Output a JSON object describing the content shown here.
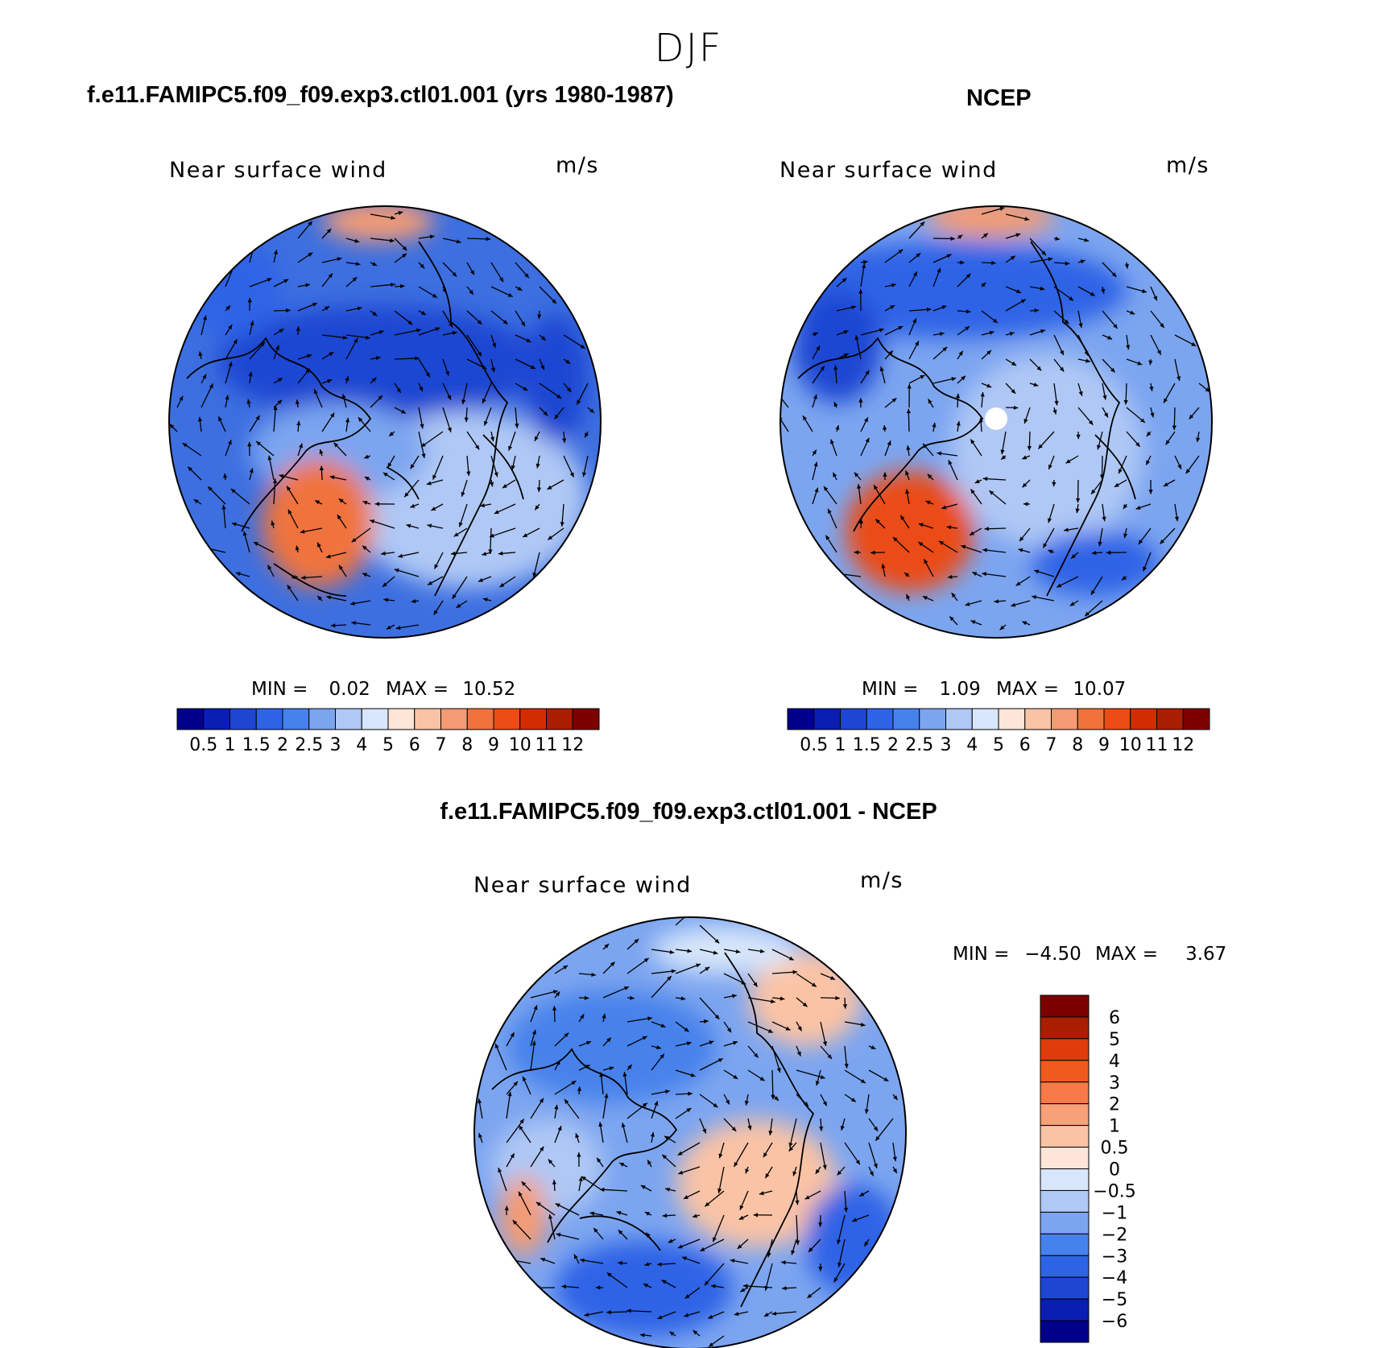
{
  "figure": {
    "title": "DJF"
  },
  "panels": [
    {
      "id": "model",
      "header": "f.e11.FAMIPC5.f09_f09.exp3.ctl01.001 (yrs 1980-1987)",
      "variable": "Near surface wind",
      "units": "m/s",
      "min_label": "MIN =",
      "min_value": "0.02",
      "max_label": "MAX =",
      "max_value": "10.52"
    },
    {
      "id": "obs",
      "header": "NCEP",
      "variable": "Near surface wind",
      "units": "m/s",
      "min_label": "MIN =",
      "min_value": "1.09",
      "max_label": "MAX =",
      "max_value": "10.07"
    },
    {
      "id": "diff",
      "header": "f.e11.FAMIPC5.f09_f09.exp3.ctl01.001 - NCEP",
      "variable": "Near surface wind",
      "units": "m/s",
      "min_label": "MIN =",
      "min_value": "−4.50",
      "max_label": "MAX =",
      "max_value": "3.67"
    }
  ],
  "colorbars": {
    "speed": {
      "colors": [
        "#00008a",
        "#0a1eb4",
        "#1e46d2",
        "#2d64e6",
        "#4682eb",
        "#7ca5f0",
        "#afc8f5",
        "#d7e6fa",
        "#fde6d7",
        "#fac3a5",
        "#f59b73",
        "#f0733c",
        "#eb4b14",
        "#d22d00",
        "#aa1e00",
        "#7d0000"
      ],
      "labels": [
        "0.5",
        "1",
        "1.5",
        "2",
        "2.5",
        "3",
        "4",
        "5",
        "6",
        "7",
        "8",
        "9",
        "10",
        "11",
        "12"
      ]
    },
    "difference": {
      "colors_top_to_bottom": [
        "#7d0000",
        "#aa1e00",
        "#e03c0a",
        "#f05a1e",
        "#f57a46",
        "#f8a078",
        "#fbc3a5",
        "#fde6d7",
        "#d7e6fa",
        "#afc8f5",
        "#7ca5f0",
        "#4682eb",
        "#2d64e6",
        "#1e46d2",
        "#0a1eb4",
        "#00008a"
      ],
      "labels_top_to_bottom": [
        "6",
        "5",
        "4",
        "3",
        "2",
        "1",
        "0.5",
        "0",
        "−0.5",
        "−1",
        "−2",
        "−3",
        "−4",
        "−5",
        "−6"
      ]
    }
  },
  "map_fields": {
    "model": {
      "base": "#3d6fe0",
      "blobs": [
        {
          "lon": "Pacific",
          "color": "#1e46d2"
        },
        {
          "lon": "North Atlantic",
          "color": "#f0733c"
        },
        {
          "lon": "Arctic",
          "color": "#afc8f5"
        }
      ]
    },
    "obs": {
      "base": "#7ca5f0"
    },
    "diff": {
      "base": "#7ca5f0"
    }
  }
}
